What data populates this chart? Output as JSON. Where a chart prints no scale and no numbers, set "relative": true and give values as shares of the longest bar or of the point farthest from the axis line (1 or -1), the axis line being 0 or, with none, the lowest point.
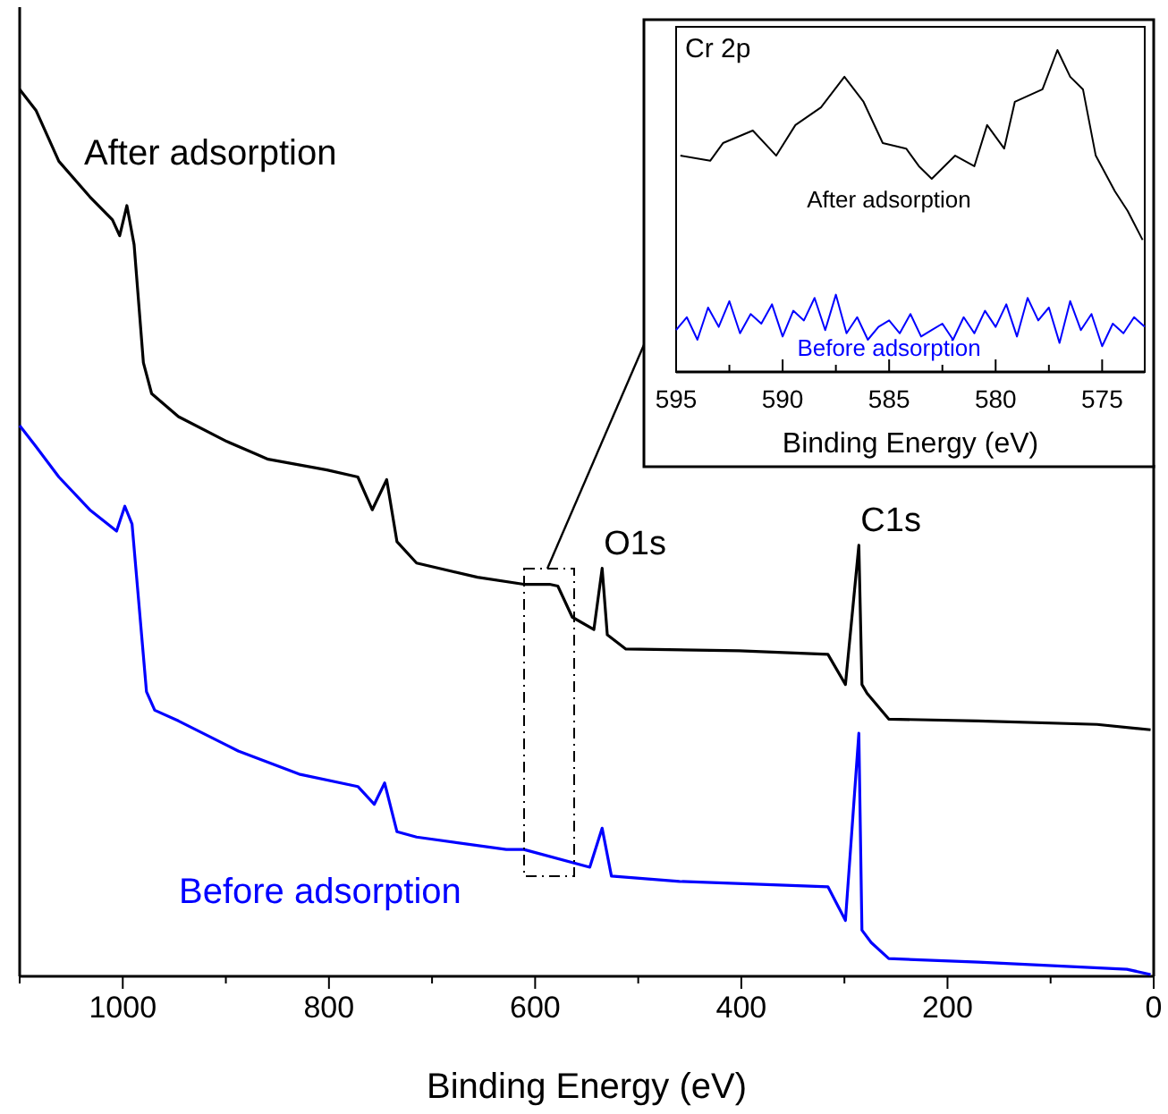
{
  "chart_data": [
    {
      "type": "line",
      "xlabel": "Binding Energy (eV)",
      "relative": true,
      "xlim": [
        1100,
        0
      ],
      "xticks": [
        {
          "value": 1100,
          "label": null
        },
        1000,
        {
          "value": 900,
          "label": null
        },
        800,
        {
          "value": 700,
          "label": null
        },
        600,
        {
          "value": 500,
          "label": null
        },
        400,
        {
          "value": 300,
          "label": null
        },
        200,
        {
          "value": 100,
          "label": null
        },
        0
      ],
      "series": [
        {
          "name": "After adsorption",
          "color": "#000000",
          "x": [
            1100,
            1084,
            1062,
            1032,
            1010,
            1003,
            996,
            989,
            980,
            972,
            946,
            899,
            859,
            802,
            772,
            758,
            744,
            734,
            715,
            656,
            611,
            586,
            578,
            564,
            543,
            535,
            530,
            512,
            402,
            316,
            299,
            286,
            283,
            278,
            257,
            170,
            55,
            3
          ],
          "values": [
            1.0,
            0.976,
            0.919,
            0.879,
            0.853,
            0.835,
            0.869,
            0.825,
            0.692,
            0.657,
            0.631,
            0.603,
            0.583,
            0.571,
            0.563,
            0.526,
            0.56,
            0.49,
            0.466,
            0.45,
            0.442,
            0.442,
            0.44,
            0.405,
            0.391,
            0.46,
            0.385,
            0.369,
            0.367,
            0.363,
            0.329,
            0.486,
            0.329,
            0.319,
            0.29,
            0.288,
            0.284,
            0.278
          ]
        },
        {
          "name": "Before adsorption",
          "color": "#0000ff",
          "x": [
            1100,
            1084,
            1062,
            1032,
            1006,
            998,
            991,
            977,
            969,
            946,
            888,
            829,
            772,
            756,
            746,
            734,
            715,
            628,
            611,
            547,
            535,
            526,
            460,
            316,
            299,
            286,
            283,
            274,
            257,
            170,
            26,
            3
          ],
          "values": [
            0.621,
            0.597,
            0.563,
            0.526,
            0.502,
            0.53,
            0.51,
            0.321,
            0.3,
            0.288,
            0.254,
            0.228,
            0.214,
            0.194,
            0.218,
            0.163,
            0.157,
            0.143,
            0.143,
            0.123,
            0.167,
            0.113,
            0.107,
            0.101,
            0.063,
            0.274,
            0.052,
            0.038,
            0.02,
            0.016,
            0.008,
            0.002
          ]
        }
      ],
      "annotations": [
        {
          "text": "O1s",
          "x": 535,
          "y": 0.46
        },
        {
          "text": "C1s",
          "x": 286,
          "y": 0.486
        }
      ]
    },
    {
      "type": "line",
      "title": "Cr 2p",
      "xlabel": "Binding Energy (eV)",
      "relative": true,
      "xlim": [
        595,
        573
      ],
      "xticks": [
        595,
        {
          "value": 592.5,
          "label": null
        },
        590,
        {
          "value": 587.5,
          "label": null
        },
        585,
        {
          "value": 582.5,
          "label": null
        },
        580,
        {
          "value": 577.5,
          "label": null
        },
        575
      ],
      "series": [
        {
          "name": "After adsorption",
          "color": "#000000",
          "x": [
            594.8,
            593.4,
            592.8,
            591.4,
            590.3,
            589.4,
            588.2,
            587.1,
            586.2,
            585.3,
            584.2,
            583.6,
            583.0,
            581.9,
            581.0,
            580.4,
            579.6,
            579.1,
            577.8,
            577.1,
            576.5,
            575.9,
            575.3,
            574.4,
            573.8,
            573.1
          ],
          "values": [
            0.672,
            0.656,
            0.711,
            0.75,
            0.672,
            0.767,
            0.822,
            0.917,
            0.839,
            0.711,
            0.694,
            0.639,
            0.6,
            0.672,
            0.639,
            0.767,
            0.694,
            0.839,
            0.878,
            1.0,
            0.917,
            0.878,
            0.672,
            0.561,
            0.5,
            0.41
          ]
        },
        {
          "name": "Before adsorption",
          "color": "#0000ff",
          "x": [
            595,
            594.5,
            594,
            593.5,
            593,
            592.5,
            592,
            591.5,
            591,
            590.5,
            590,
            589.5,
            589,
            588.5,
            588,
            587.5,
            587,
            586.5,
            586,
            585.5,
            585,
            584.5,
            584,
            583.5,
            583,
            582.5,
            582,
            581.5,
            581,
            580.5,
            580,
            579.5,
            579,
            578.5,
            578,
            577.5,
            577,
            576.5,
            576,
            575.5,
            575,
            574.5,
            574,
            573.5,
            573
          ],
          "values": [
            0.13,
            0.17,
            0.1,
            0.2,
            0.14,
            0.22,
            0.12,
            0.18,
            0.15,
            0.21,
            0.11,
            0.19,
            0.16,
            0.23,
            0.13,
            0.24,
            0.12,
            0.17,
            0.1,
            0.14,
            0.16,
            0.12,
            0.18,
            0.11,
            0.13,
            0.15,
            0.1,
            0.17,
            0.12,
            0.19,
            0.14,
            0.21,
            0.11,
            0.23,
            0.16,
            0.2,
            0.09,
            0.22,
            0.13,
            0.18,
            0.08,
            0.15,
            0.12,
            0.17,
            0.14
          ]
        }
      ]
    }
  ]
}
